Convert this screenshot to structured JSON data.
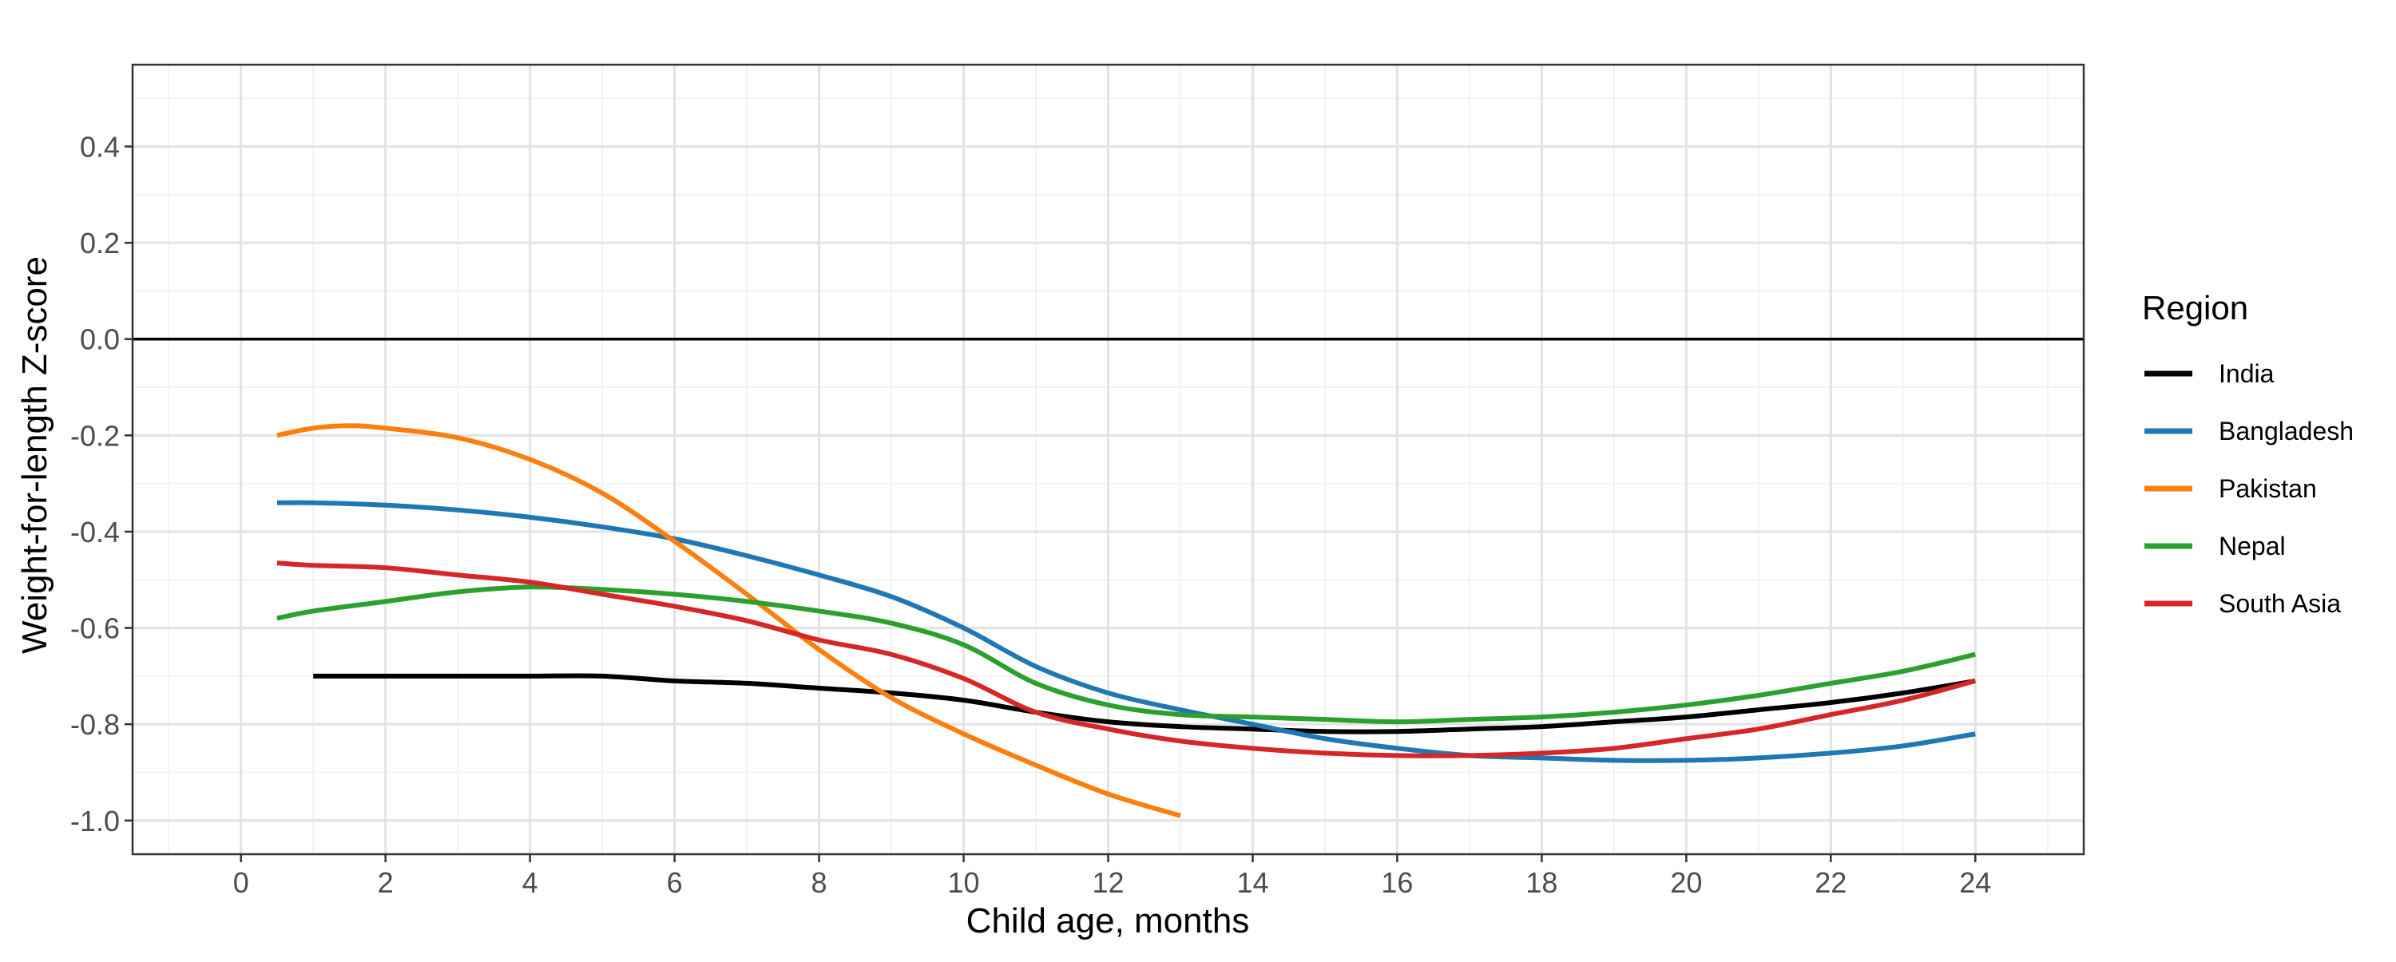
{
  "chart_data": {
    "type": "line",
    "xlabel": "Child age, months",
    "ylabel": "Weight-for-length Z-score",
    "xlim": [
      -1.5,
      25.5
    ],
    "ylim": [
      -1.07,
      0.57
    ],
    "x_ticks": [
      0,
      2,
      4,
      6,
      8,
      10,
      12,
      14,
      16,
      18,
      20,
      22,
      24
    ],
    "x_tick_labels": [
      "0",
      "2",
      "4",
      "6",
      "8",
      "10",
      "12",
      "14",
      "16",
      "18",
      "20",
      "22",
      "24"
    ],
    "y_ticks": [
      -1.0,
      -0.8,
      -0.6,
      -0.4,
      -0.2,
      0.0,
      0.2,
      0.4
    ],
    "y_tick_labels": [
      "-1.0",
      "-0.8",
      "-0.6",
      "-0.4",
      "-0.2",
      "0.0",
      "0.2",
      "0.4"
    ],
    "reference_line": 0,
    "grid": true,
    "legend": {
      "title": "Region",
      "position": "right"
    },
    "series": [
      {
        "name": "India",
        "color": "#000000",
        "x": [
          1,
          2,
          3,
          4,
          5,
          6,
          7,
          8,
          9,
          10,
          11,
          12,
          13,
          14,
          15,
          16,
          17,
          18,
          19,
          20,
          21,
          22,
          23,
          24
        ],
        "y": [
          -0.7,
          -0.7,
          -0.7,
          -0.7,
          -0.7,
          -0.71,
          -0.715,
          -0.725,
          -0.735,
          -0.75,
          -0.775,
          -0.795,
          -0.805,
          -0.81,
          -0.815,
          -0.815,
          -0.81,
          -0.805,
          -0.795,
          -0.785,
          -0.77,
          -0.755,
          -0.735,
          -0.71
        ]
      },
      {
        "name": "Bangladesh",
        "color": "#1f77b4",
        "x": [
          0.5,
          1,
          2,
          3,
          4,
          5,
          6,
          7,
          8,
          9,
          10,
          11,
          12,
          13,
          14,
          15,
          16,
          17,
          18,
          19,
          20,
          21,
          22,
          23,
          24
        ],
        "y": [
          -0.34,
          -0.34,
          -0.345,
          -0.355,
          -0.37,
          -0.39,
          -0.415,
          -0.45,
          -0.49,
          -0.535,
          -0.6,
          -0.68,
          -0.735,
          -0.77,
          -0.8,
          -0.83,
          -0.85,
          -0.865,
          -0.87,
          -0.875,
          -0.875,
          -0.87,
          -0.86,
          -0.845,
          -0.82
        ]
      },
      {
        "name": "Pakistan",
        "color": "#ff7f0e",
        "x": [
          0.5,
          1,
          1.5,
          2,
          3,
          4,
          5,
          6,
          7,
          8,
          9,
          10,
          11,
          12,
          13
        ],
        "y": [
          -0.2,
          -0.185,
          -0.18,
          -0.185,
          -0.205,
          -0.25,
          -0.32,
          -0.42,
          -0.53,
          -0.645,
          -0.745,
          -0.82,
          -0.885,
          -0.945,
          -0.99
        ]
      },
      {
        "name": "Nepal",
        "color": "#2ca02c",
        "x": [
          0.5,
          1,
          2,
          3,
          4,
          5,
          6,
          7,
          8,
          9,
          10,
          11,
          12,
          13,
          14,
          15,
          16,
          17,
          18,
          19,
          20,
          21,
          22,
          23,
          24
        ],
        "y": [
          -0.58,
          -0.565,
          -0.545,
          -0.525,
          -0.515,
          -0.52,
          -0.53,
          -0.545,
          -0.565,
          -0.59,
          -0.635,
          -0.715,
          -0.76,
          -0.78,
          -0.785,
          -0.79,
          -0.795,
          -0.79,
          -0.785,
          -0.775,
          -0.76,
          -0.74,
          -0.715,
          -0.69,
          -0.655
        ]
      },
      {
        "name": "South Asia",
        "color": "#d62728",
        "x": [
          0.5,
          1,
          2,
          3,
          4,
          5,
          6,
          7,
          8,
          9,
          10,
          11,
          12,
          13,
          14,
          15,
          16,
          17,
          18,
          19,
          20,
          21,
          22,
          23,
          24
        ],
        "y": [
          -0.465,
          -0.47,
          -0.475,
          -0.49,
          -0.505,
          -0.53,
          -0.555,
          -0.585,
          -0.625,
          -0.655,
          -0.705,
          -0.775,
          -0.81,
          -0.835,
          -0.85,
          -0.86,
          -0.865,
          -0.865,
          -0.86,
          -0.85,
          -0.83,
          -0.81,
          -0.78,
          -0.75,
          -0.71
        ]
      }
    ]
  }
}
